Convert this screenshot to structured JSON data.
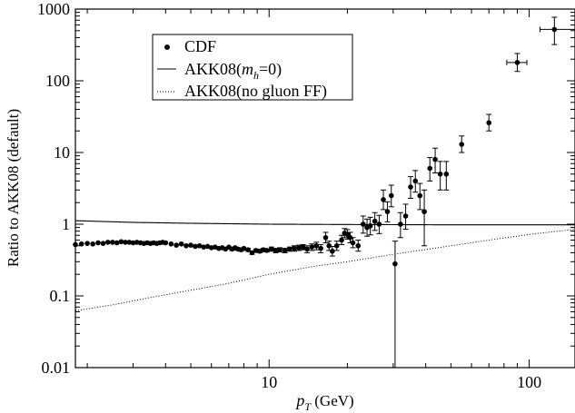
{
  "chart_data": {
    "type": "scatter",
    "xlabel": "p_T (GeV)",
    "xlabel_main": "p",
    "xlabel_sub": "T",
    "xlabel_rest": " (GeV)",
    "ylabel": "Ratio to AKK08 (default)",
    "xscale": "log",
    "yscale": "log",
    "xlim": [
      1.8,
      150
    ],
    "ylim": [
      0.01,
      1000
    ],
    "grid": false,
    "legend_position": "top-left",
    "x_ticks": [
      {
        "value": 10,
        "label": "10"
      },
      {
        "value": 100,
        "label": "100"
      }
    ],
    "y_ticks": [
      {
        "value": 0.01,
        "label": "0.01"
      },
      {
        "value": 0.1,
        "label": "0.1"
      },
      {
        "value": 1,
        "label": "1"
      },
      {
        "value": 10,
        "label": "10"
      },
      {
        "value": 100,
        "label": "100"
      },
      {
        "value": 1000,
        "label": "1000"
      }
    ],
    "legend": {
      "cdf": "CDF",
      "mh0_pre": "AKK08(",
      "mh0_m": "m",
      "mh0_sub": "h",
      "mh0_post": "=0)",
      "nogluon": "AKK08(no gluon FF)"
    },
    "series": [
      {
        "name": "CDF",
        "style": "points",
        "color": "#000000",
        "points": [
          [
            1.8,
            0.52,
            0.01,
            0.01
          ],
          [
            1.9,
            0.53,
            0.01,
            0.01
          ],
          [
            2.0,
            0.54,
            0.01,
            0.01
          ],
          [
            2.1,
            0.53,
            0.01,
            0.01
          ],
          [
            2.2,
            0.55,
            0.01,
            0.01
          ],
          [
            2.3,
            0.54,
            0.01,
            0.01
          ],
          [
            2.4,
            0.56,
            0.01,
            0.01
          ],
          [
            2.5,
            0.56,
            0.01,
            0.01
          ],
          [
            2.6,
            0.55,
            0.01,
            0.01
          ],
          [
            2.7,
            0.57,
            0.01,
            0.01
          ],
          [
            2.8,
            0.56,
            0.01,
            0.01
          ],
          [
            2.9,
            0.56,
            0.01,
            0.01
          ],
          [
            3.0,
            0.55,
            0.01,
            0.01
          ],
          [
            3.1,
            0.56,
            0.01,
            0.01
          ],
          [
            3.2,
            0.55,
            0.01,
            0.01
          ],
          [
            3.3,
            0.54,
            0.01,
            0.01
          ],
          [
            3.4,
            0.55,
            0.01,
            0.01
          ],
          [
            3.5,
            0.54,
            0.01,
            0.01
          ],
          [
            3.6,
            0.55,
            0.01,
            0.01
          ],
          [
            3.7,
            0.54,
            0.01,
            0.01
          ],
          [
            3.8,
            0.55,
            0.01,
            0.01
          ],
          [
            3.9,
            0.56,
            0.01,
            0.01
          ],
          [
            4.0,
            0.55,
            0.01,
            0.01
          ],
          [
            4.2,
            0.53,
            0.01,
            0.01
          ],
          [
            4.4,
            0.51,
            0.01,
            0.01
          ],
          [
            4.6,
            0.53,
            0.01,
            0.01
          ],
          [
            4.8,
            0.5,
            0.01,
            0.01
          ],
          [
            5.0,
            0.51,
            0.01,
            0.01
          ],
          [
            5.2,
            0.49,
            0.01,
            0.01
          ],
          [
            5.4,
            0.5,
            0.01,
            0.01
          ],
          [
            5.6,
            0.48,
            0.01,
            0.01
          ],
          [
            5.8,
            0.49,
            0.01,
            0.01
          ],
          [
            6.0,
            0.47,
            0.01,
            0.01
          ],
          [
            6.2,
            0.48,
            0.01,
            0.01
          ],
          [
            6.4,
            0.46,
            0.01,
            0.01
          ],
          [
            6.6,
            0.47,
            0.01,
            0.01
          ],
          [
            6.8,
            0.45,
            0.01,
            0.01
          ],
          [
            7.0,
            0.48,
            0.02,
            0.02
          ],
          [
            7.2,
            0.45,
            0.02,
            0.02
          ],
          [
            7.4,
            0.47,
            0.02,
            0.02
          ],
          [
            7.6,
            0.45,
            0.02,
            0.02
          ],
          [
            7.8,
            0.44,
            0.02,
            0.02
          ],
          [
            8.0,
            0.46,
            0.02,
            0.02
          ],
          [
            8.3,
            0.44,
            0.02,
            0.02
          ],
          [
            8.6,
            0.4,
            0.02,
            0.02
          ],
          [
            8.9,
            0.43,
            0.02,
            0.02
          ],
          [
            9.2,
            0.42,
            0.02,
            0.02
          ],
          [
            9.5,
            0.44,
            0.02,
            0.02
          ],
          [
            9.8,
            0.43,
            0.02,
            0.02
          ],
          [
            10.2,
            0.45,
            0.03,
            0.03
          ],
          [
            10.6,
            0.43,
            0.03,
            0.03
          ],
          [
            11.0,
            0.44,
            0.03,
            0.03
          ],
          [
            11.5,
            0.43,
            0.03,
            0.03
          ],
          [
            12.0,
            0.45,
            0.03,
            0.03
          ],
          [
            12.5,
            0.46,
            0.04,
            0.04
          ],
          [
            13.0,
            0.47,
            0.04,
            0.04
          ],
          [
            13.5,
            0.48,
            0.04,
            0.04
          ],
          [
            14.0,
            0.45,
            0.05,
            0.05
          ],
          [
            14.6,
            0.48,
            0.05,
            0.05
          ],
          [
            15.2,
            0.5,
            0.06,
            0.06
          ],
          [
            15.8,
            0.46,
            0.06,
            0.06
          ],
          [
            16.5,
            0.65,
            0.12,
            0.1
          ],
          [
            17.0,
            0.5,
            0.08,
            0.07
          ],
          [
            17.5,
            0.42,
            0.07,
            0.06
          ],
          [
            18.2,
            0.5,
            0.08,
            0.07
          ],
          [
            19.0,
            0.6,
            0.1,
            0.08
          ],
          [
            19.5,
            0.75,
            0.12,
            0.1
          ],
          [
            20.0,
            0.72,
            0.12,
            0.1
          ],
          [
            20.5,
            0.65,
            0.12,
            0.1
          ],
          [
            21.0,
            0.55,
            0.1,
            0.08
          ],
          [
            22.0,
            0.5,
            0.1,
            0.08
          ],
          [
            23.0,
            1.0,
            0.3,
            0.25
          ],
          [
            23.8,
            0.9,
            0.28,
            0.22
          ],
          [
            24.5,
            0.95,
            0.3,
            0.24
          ],
          [
            25.5,
            1.1,
            0.35,
            0.28
          ],
          [
            26.5,
            1.0,
            0.33,
            0.26
          ],
          [
            27.5,
            2.2,
            0.8,
            0.6
          ],
          [
            28.5,
            1.5,
            0.55,
            0.42
          ],
          [
            29.5,
            2.5,
            1.0,
            0.75
          ],
          [
            30.5,
            0.28,
            0.3,
            0.28
          ],
          [
            32.0,
            1.0,
            0.45,
            0.35
          ],
          [
            33.5,
            1.3,
            0.6,
            0.45
          ],
          [
            35.0,
            3.3,
            1.3,
            1.0
          ],
          [
            36.5,
            4.0,
            1.6,
            1.2
          ],
          [
            38.0,
            2.5,
            1.2,
            0.9
          ],
          [
            39.5,
            1.5,
            1.5,
            1.0
          ],
          [
            41.5,
            6.0,
            2.5,
            2.0
          ],
          [
            43.5,
            8.0,
            3.5,
            2.8
          ],
          [
            45.5,
            5.0,
            2.5,
            2.0
          ],
          [
            48.0,
            5.0,
            2.5,
            2.0
          ],
          [
            55.0,
            13.0,
            4.0,
            3.0
          ],
          [
            70.0,
            26.0,
            8.0,
            6.0
          ],
          [
            90.0,
            180.0,
            60.0,
            45.0
          ],
          [
            125.0,
            520.0,
            250.0,
            200.0
          ]
        ],
        "x_err": [
          [
            65.0,
            58.0,
            72.0
          ],
          [
            90.0,
            82.0,
            98.0
          ],
          [
            125.0,
            110.0,
            150.0
          ]
        ]
      },
      {
        "name": "AKK08(m_h=0)",
        "style": "solid",
        "color": "#000000",
        "points": [
          [
            1.8,
            1.12
          ],
          [
            3,
            1.06
          ],
          [
            5,
            1.03
          ],
          [
            10,
            1.0
          ],
          [
            20,
            0.99
          ],
          [
            50,
            0.98
          ],
          [
            100,
            0.98
          ],
          [
            150,
            0.98
          ]
        ]
      },
      {
        "name": "AKK08(no gluon FF)",
        "style": "dotted",
        "color": "#000000",
        "points": [
          [
            1.8,
            0.062
          ],
          [
            2.5,
            0.075
          ],
          [
            3.5,
            0.095
          ],
          [
            5,
            0.12
          ],
          [
            7,
            0.15
          ],
          [
            10,
            0.2
          ],
          [
            15,
            0.26
          ],
          [
            20,
            0.3
          ],
          [
            30,
            0.38
          ],
          [
            50,
            0.5
          ],
          [
            70,
            0.6
          ],
          [
            100,
            0.72
          ],
          [
            150,
            0.85
          ]
        ]
      }
    ]
  }
}
